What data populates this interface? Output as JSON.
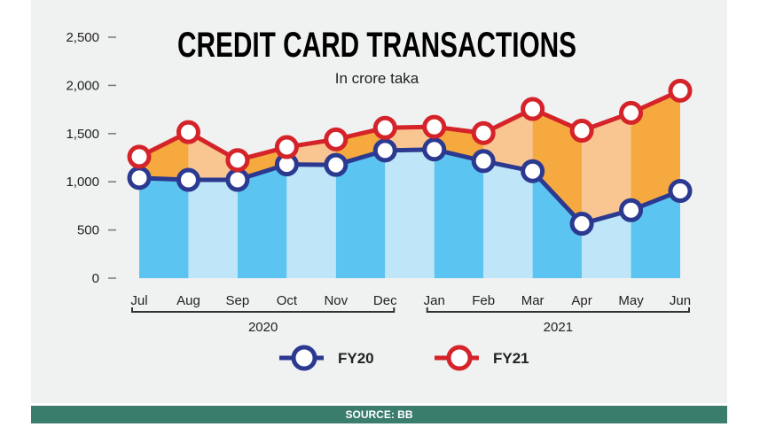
{
  "source": "SOURCE: BB",
  "chart_data": {
    "type": "line",
    "title": "CREDIT CARD TRANSACTIONS",
    "subtitle": "In crore taka",
    "categories": [
      "Jul",
      "Aug",
      "Sep",
      "Oct",
      "Nov",
      "Dec",
      "Jan",
      "Feb",
      "Mar",
      "Apr",
      "May",
      "Jun"
    ],
    "year_groups": [
      {
        "label": "2020",
        "from": 0,
        "to": 5
      },
      {
        "label": "2021",
        "from": 6,
        "to": 11
      }
    ],
    "series": [
      {
        "name": "FY20",
        "color": "#2b3990",
        "values": [
          1040,
          1020,
          1020,
          1180,
          1175,
          1325,
          1335,
          1215,
          1110,
          565,
          705,
          905
        ]
      },
      {
        "name": "FY21",
        "color": "#d5232a",
        "values": [
          1260,
          1515,
          1225,
          1360,
          1440,
          1560,
          1570,
          1505,
          1755,
          1530,
          1715,
          1945
        ]
      }
    ],
    "yticks": [
      "0",
      "500",
      "1,000",
      "1,500",
      "2,000",
      "2,500"
    ],
    "ylim": [
      0,
      2500
    ],
    "fill_colors": {
      "blue_dark": "#5bc4f1",
      "blue_light": "#bee6f8",
      "orange_dark": "#f6a93e",
      "orange_light": "#f9c590"
    },
    "legend_position": "bottom"
  }
}
